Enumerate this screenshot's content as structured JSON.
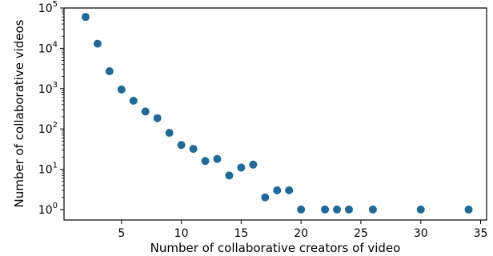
{
  "chart_data": {
    "type": "scatter",
    "xlabel": "Number of collaborative creators of video",
    "ylabel": "Number of collaborative videos",
    "y_scale": "log",
    "xlim": [
      0.2,
      35.5
    ],
    "ylim": [
      0.55,
      100000
    ],
    "x_ticks": [
      5,
      10,
      15,
      20,
      25,
      30,
      35
    ],
    "y_ticks": [
      {
        "value": 1,
        "base": "10",
        "exp": "0"
      },
      {
        "value": 10,
        "base": "10",
        "exp": "1"
      },
      {
        "value": 100,
        "base": "10",
        "exp": "2"
      },
      {
        "value": 1000,
        "base": "10",
        "exp": "3"
      },
      {
        "value": 10000,
        "base": "10",
        "exp": "4"
      },
      {
        "value": 100000,
        "base": "10",
        "exp": "5"
      }
    ],
    "marker_color": "#1f6a9a",
    "grid": false,
    "points": [
      {
        "x": 2,
        "y": 60000
      },
      {
        "x": 3,
        "y": 13000
      },
      {
        "x": 4,
        "y": 2700
      },
      {
        "x": 5,
        "y": 950
      },
      {
        "x": 6,
        "y": 500
      },
      {
        "x": 7,
        "y": 270
      },
      {
        "x": 8,
        "y": 185
      },
      {
        "x": 9,
        "y": 80
      },
      {
        "x": 10,
        "y": 40
      },
      {
        "x": 11,
        "y": 32
      },
      {
        "x": 12,
        "y": 16
      },
      {
        "x": 13,
        "y": 18
      },
      {
        "x": 14,
        "y": 7
      },
      {
        "x": 15,
        "y": 11
      },
      {
        "x": 16,
        "y": 13
      },
      {
        "x": 17,
        "y": 2
      },
      {
        "x": 18,
        "y": 3
      },
      {
        "x": 19,
        "y": 3
      },
      {
        "x": 20,
        "y": 1
      },
      {
        "x": 22,
        "y": 1
      },
      {
        "x": 23,
        "y": 1
      },
      {
        "x": 24,
        "y": 1
      },
      {
        "x": 26,
        "y": 1
      },
      {
        "x": 30,
        "y": 1
      },
      {
        "x": 34,
        "y": 1
      }
    ]
  }
}
